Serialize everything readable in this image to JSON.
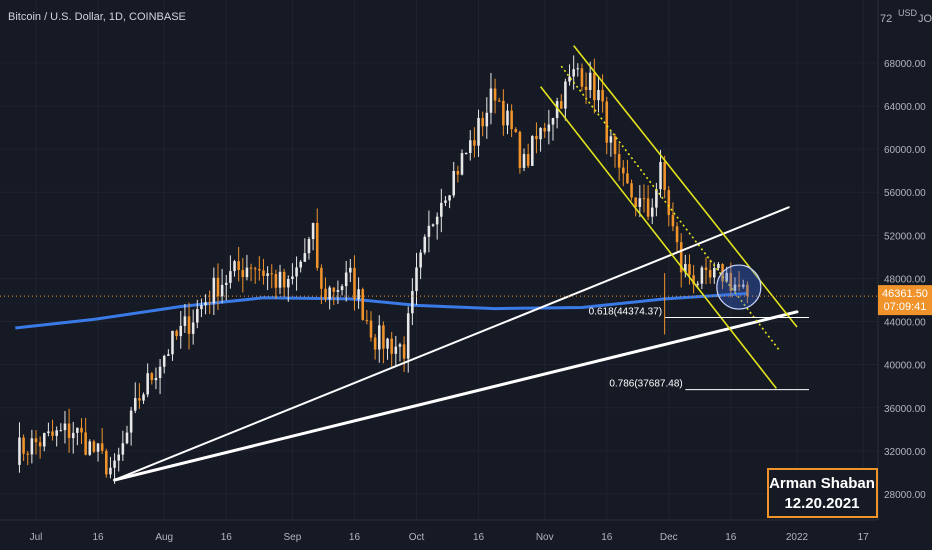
{
  "header": {
    "title": "Bitcoin / U.S. Dollar, 1D, COINBASE"
  },
  "axis": {
    "currency": "USD",
    "top_partial": "72",
    "y_ticks": [
      "68000.00",
      "64000.00",
      "60000.00",
      "56000.00",
      "52000.00",
      "48000.00",
      "44000.00",
      "40000.00",
      "36000.00",
      "32000.00",
      "28000.00"
    ],
    "x_ticks": [
      "Jul",
      "16",
      "Aug",
      "16",
      "Sep",
      "16",
      "Oct",
      "16",
      "Nov",
      "16",
      "Dec",
      "16",
      "2022",
      "17"
    ]
  },
  "price_label": {
    "price": "46361.50",
    "countdown": "07:09:41"
  },
  "annotations": {
    "fib_618": "0.618(44374.37)",
    "fib_786": "0.786(37687.48)",
    "author": "Arman Shaban",
    "date": "12.20.2021"
  },
  "colors": {
    "background": "#161a25",
    "up": "#e8e8e8",
    "down": "#f0932b",
    "ma": "#3c7ff0",
    "channel": "#e3e31c",
    "trendline": "#ffffff",
    "badge": "#f0932b"
  },
  "chart_data": {
    "type": "candlestick",
    "title": "Bitcoin / U.S. Dollar, 1D, COINBASE",
    "y_unit": "USD",
    "ylim": [
      26000,
      72000
    ],
    "last_price": 46361.5,
    "price_anchors": [
      {
        "date": "2021-06-26",
        "price": 32000
      },
      {
        "date": "2021-07-10",
        "price": 34000
      },
      {
        "date": "2021-07-20",
        "price": 30000
      },
      {
        "date": "2021-07-26",
        "price": 37000
      },
      {
        "date": "2021-08-01",
        "price": 41000
      },
      {
        "date": "2021-08-07",
        "price": 44000
      },
      {
        "date": "2021-08-14",
        "price": 47500
      },
      {
        "date": "2021-08-22",
        "price": 49500
      },
      {
        "date": "2021-08-31",
        "price": 47000
      },
      {
        "date": "2021-09-06",
        "price": 52000
      },
      {
        "date": "2021-09-08",
        "price": 46500
      },
      {
        "date": "2021-09-15",
        "price": 48000
      },
      {
        "date": "2021-09-21",
        "price": 42500
      },
      {
        "date": "2021-09-28",
        "price": 41500
      },
      {
        "date": "2021-10-01",
        "price": 48000
      },
      {
        "date": "2021-10-06",
        "price": 55000
      },
      {
        "date": "2021-10-15",
        "price": 61000
      },
      {
        "date": "2021-10-20",
        "price": 65500
      },
      {
        "date": "2021-10-27",
        "price": 58500
      },
      {
        "date": "2021-11-02",
        "price": 63000
      },
      {
        "date": "2021-11-09",
        "price": 67500
      },
      {
        "date": "2021-11-14",
        "price": 65000
      },
      {
        "date": "2021-11-19",
        "price": 57000
      },
      {
        "date": "2021-11-26",
        "price": 54000
      },
      {
        "date": "2021-11-29",
        "price": 57800
      },
      {
        "date": "2021-12-04",
        "price": 49000
      },
      {
        "date": "2021-12-10",
        "price": 47500
      },
      {
        "date": "2021-12-14",
        "price": 48500
      },
      {
        "date": "2021-12-20",
        "price": 46361.5
      }
    ],
    "moving_average": [
      {
        "date": "2021-06-26",
        "price": 43400
      },
      {
        "date": "2021-07-15",
        "price": 44200
      },
      {
        "date": "2021-08-05",
        "price": 45400
      },
      {
        "date": "2021-08-25",
        "price": 46200
      },
      {
        "date": "2021-09-15",
        "price": 46100
      },
      {
        "date": "2021-10-01",
        "price": 45500
      },
      {
        "date": "2021-10-20",
        "price": 45200
      },
      {
        "date": "2021-11-10",
        "price": 45300
      },
      {
        "date": "2021-11-30",
        "price": 46100
      },
      {
        "date": "2021-12-20",
        "price": 46600
      }
    ],
    "trendlines": [
      {
        "from": {
          "date": "2021-07-20",
          "price": 29300
        },
        "to": {
          "date": "2021-12-30",
          "price": 54600
        },
        "width": 2
      },
      {
        "from": {
          "date": "2021-07-20",
          "price": 29300
        },
        "to": {
          "date": "2022-01-01",
          "price": 44900
        },
        "width": 3
      }
    ],
    "channel": [
      {
        "from": {
          "date": "2021-11-08",
          "price": 69600
        },
        "to": {
          "date": "2022-01-01",
          "price": 43500
        },
        "style": "solid"
      },
      {
        "from": {
          "date": "2021-10-31",
          "price": 65800
        },
        "to": {
          "date": "2021-12-27",
          "price": 37800
        },
        "style": "solid"
      },
      {
        "from": {
          "date": "2021-11-05",
          "price": 67700
        },
        "to": {
          "date": "2021-12-28",
          "price": 41200
        },
        "style": "dotted"
      }
    ],
    "fib_levels": [
      {
        "ratio": 0.618,
        "price": 44374.37,
        "start": "2021-11-30",
        "end": "2022-01-01"
      },
      {
        "ratio": 0.786,
        "price": 37687.48,
        "start": "2021-12-05",
        "end": "2022-01-01"
      }
    ],
    "highlight": {
      "date": "2021-12-16",
      "price": 47200
    }
  }
}
